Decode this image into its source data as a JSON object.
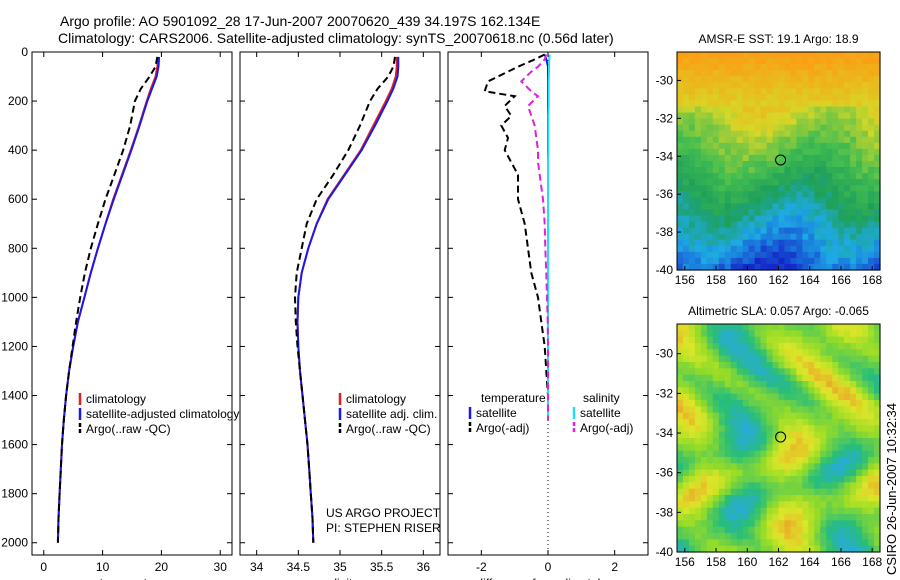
{
  "header": {
    "line1": "Argo profile: AO 5901092_28 17-Jun-2007 20070620_439 34.197S 162.134E",
    "line2": "Climatology: CARS2006. Satellite-adjusted climatology: synTS_20070618.nc (0.56d later)"
  },
  "side_label": "CSIRO 26-Jun-2007 10:32:34",
  "colors": {
    "climatology": "#e02020",
    "satellite": "#1a1aee",
    "argo": "#000000",
    "salinity_satellite": "#22e0f0",
    "salinity_argo": "#e020e0"
  },
  "chart_data": [
    {
      "type": "line",
      "xlabel": "temperature",
      "ylabel": "",
      "xlim": [
        -2,
        32
      ],
      "ylim": [
        2050,
        0
      ],
      "xticks": [
        0,
        10,
        20,
        30
      ],
      "yticks": [
        0,
        200,
        400,
        600,
        800,
        1000,
        1200,
        1400,
        1600,
        1800,
        2000
      ],
      "depth": [
        20,
        60,
        100,
        150,
        200,
        300,
        400,
        500,
        600,
        700,
        800,
        900,
        1000,
        1100,
        1200,
        1300,
        1400,
        1500,
        1600,
        1700,
        1800,
        1900,
        2000
      ],
      "series": [
        {
          "name": "climatology",
          "values": [
            19.4,
            19.3,
            19.0,
            18.2,
            17.5,
            16.2,
            14.8,
            13.3,
            11.8,
            10.5,
            9.2,
            8.0,
            6.9,
            5.8,
            5.0,
            4.3,
            3.8,
            3.4,
            3.1,
            2.9,
            2.7,
            2.5,
            2.4
          ]
        },
        {
          "name": "satellite-adjusted climatology",
          "values": [
            19.6,
            19.5,
            19.2,
            18.4,
            17.6,
            16.3,
            14.9,
            13.4,
            11.9,
            10.5,
            9.2,
            8.0,
            6.9,
            5.8,
            5.0,
            4.3,
            3.8,
            3.4,
            3.1,
            2.9,
            2.7,
            2.5,
            2.4
          ]
        },
        {
          "name": "Argo(..raw -QC)",
          "values": [
            19.3,
            19.0,
            18.0,
            16.5,
            15.5,
            14.7,
            13.5,
            12.0,
            10.5,
            9.2,
            8.0,
            7.0,
            6.2,
            5.5,
            4.9,
            4.3,
            3.8,
            3.4,
            3.1,
            2.9,
            2.7,
            2.5,
            2.4
          ]
        }
      ],
      "legend": {
        "placement": "bottom-right",
        "entries": [
          "climatology",
          "satellite-adjusted climatology",
          "Argo(..raw -QC)"
        ]
      }
    },
    {
      "type": "line",
      "xlabel": "salinity",
      "xlim": [
        33.8,
        36.2
      ],
      "ylim": [
        2050,
        0
      ],
      "xticks": [
        34,
        34.5,
        35,
        35.5,
        36
      ],
      "depth": [
        20,
        60,
        100,
        150,
        200,
        300,
        400,
        500,
        600,
        700,
        800,
        900,
        1000,
        1100,
        1200,
        1300,
        1400,
        1500,
        1600,
        1700,
        1800,
        1900,
        2000
      ],
      "series": [
        {
          "name": "climatology",
          "values": [
            35.68,
            35.68,
            35.67,
            35.62,
            35.55,
            35.4,
            35.25,
            35.05,
            34.85,
            34.72,
            34.62,
            34.54,
            34.5,
            34.49,
            34.5,
            34.52,
            34.55,
            34.58,
            34.61,
            34.63,
            34.65,
            34.67,
            34.68
          ]
        },
        {
          "name": "satellite adj. clim.",
          "values": [
            35.7,
            35.7,
            35.69,
            35.64,
            35.57,
            35.42,
            35.26,
            35.06,
            34.86,
            34.72,
            34.62,
            34.54,
            34.5,
            34.49,
            34.5,
            34.52,
            34.55,
            34.58,
            34.61,
            34.63,
            34.65,
            34.67,
            34.68
          ]
        },
        {
          "name": "Argo(..raw -QC)",
          "values": [
            35.66,
            35.64,
            35.58,
            35.45,
            35.36,
            35.24,
            35.1,
            34.92,
            34.72,
            34.6,
            34.54,
            34.48,
            34.46,
            34.47,
            34.49,
            34.52,
            34.55,
            34.58,
            34.61,
            34.63,
            34.65,
            34.67,
            34.68
          ]
        }
      ],
      "legend": {
        "placement": "bottom-right",
        "entries": [
          "climatology",
          "satellite adj. clim.",
          "Argo(..raw -QC)"
        ]
      },
      "annotation": [
        "US ARGO PROJECT",
        "PI: STEPHEN RISER"
      ]
    },
    {
      "type": "line",
      "xlabel": "difference from climatology",
      "xlim": [
        -3,
        3
      ],
      "ylim": [
        2050,
        0
      ],
      "xticks": [
        -2,
        0,
        2
      ],
      "depth": [
        10,
        30,
        60,
        80,
        120,
        160,
        180,
        220,
        260,
        300,
        350,
        400,
        450,
        500,
        550,
        600,
        700,
        800,
        900,
        1000,
        1100,
        1200,
        1300,
        1400,
        1500
      ],
      "series": [
        {
          "name": "temperature satellite",
          "values": [
            -0.1,
            -0.05,
            0,
            0,
            0,
            0,
            0,
            0,
            0,
            0,
            0,
            0,
            0,
            0,
            0,
            0,
            0,
            0,
            0,
            0,
            0,
            0,
            0,
            0,
            0
          ]
        },
        {
          "name": "temperature Argo(-adj)",
          "values": [
            -0.1,
            -0.4,
            -0.9,
            -1.2,
            -1.8,
            -1.9,
            -1.0,
            -1.3,
            -1.1,
            -1.4,
            -1.2,
            -1.3,
            -1.1,
            -0.9,
            -0.9,
            -0.9,
            -0.7,
            -0.6,
            -0.5,
            -0.3,
            -0.2,
            -0.1,
            -0.05,
            0,
            0
          ]
        },
        {
          "name": "salinity satellite",
          "values": [
            0.05,
            0.04,
            0.03,
            0.03,
            0.02,
            0.02,
            0.02,
            0.02,
            0.01,
            0.01,
            0.01,
            0.01,
            0,
            0,
            0,
            0,
            0,
            0,
            0,
            0,
            0,
            0,
            0,
            0,
            0
          ]
        },
        {
          "name": "salinity Argo(-adj)",
          "values": [
            -0.05,
            -0.1,
            -0.3,
            -0.5,
            -0.8,
            -0.5,
            -0.3,
            -0.6,
            -0.5,
            -0.4,
            -0.35,
            -0.3,
            -0.3,
            -0.25,
            -0.2,
            -0.15,
            -0.1,
            -0.08,
            -0.05,
            -0.03,
            -0.01,
            0,
            0,
            0,
            0
          ]
        }
      ],
      "legend": {
        "placement": "bottom-right",
        "headers": [
          "temperature",
          "salinity"
        ],
        "entries": [
          "satellite",
          "Argo(-adj)",
          "satellite",
          "Argo(-adj)"
        ]
      }
    },
    {
      "type": "heatmap",
      "title": "AMSR-E SST: 19.1 Argo: 18.9",
      "xlim": [
        155.5,
        168.5
      ],
      "ylim": [
        -40,
        -28.5
      ],
      "xticks": [
        156,
        158,
        160,
        162,
        164,
        166,
        168
      ],
      "yticks": [
        -30,
        -32,
        -34,
        -36,
        -38,
        -40
      ],
      "marker": {
        "lon": 162.134,
        "lat": -34.197
      }
    },
    {
      "type": "heatmap",
      "title": "Altimetric SLA: 0.057 Argo: -0.065",
      "xlim": [
        155.5,
        168.5
      ],
      "ylim": [
        -40,
        -28.5
      ],
      "xticks": [
        156,
        158,
        160,
        162,
        164,
        166,
        168
      ],
      "yticks": [
        -30,
        -32,
        -34,
        -36,
        -38,
        -40
      ],
      "marker": {
        "lon": 162.134,
        "lat": -34.197
      }
    }
  ]
}
